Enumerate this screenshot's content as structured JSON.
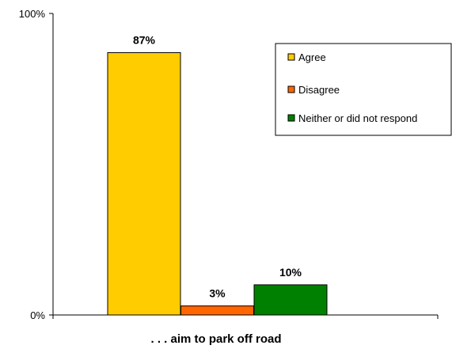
{
  "chart_data": {
    "type": "bar",
    "categories": [
      "Agree",
      "Disagree",
      "Neither or did not respond"
    ],
    "values": [
      87,
      3,
      10
    ],
    "data_labels": [
      "87%",
      "3%",
      "10%"
    ],
    "colors": [
      "#FFCC00",
      "#FF6600",
      "#008000"
    ],
    "xlabel": ". . . aim to park off road",
    "ylim": [
      0,
      100
    ],
    "yticks": [
      "0%",
      "100%"
    ],
    "grid": false,
    "legend_position": "top-right",
    "legend": [
      "Agree",
      "Disagree",
      "Neither or did not respond"
    ]
  }
}
